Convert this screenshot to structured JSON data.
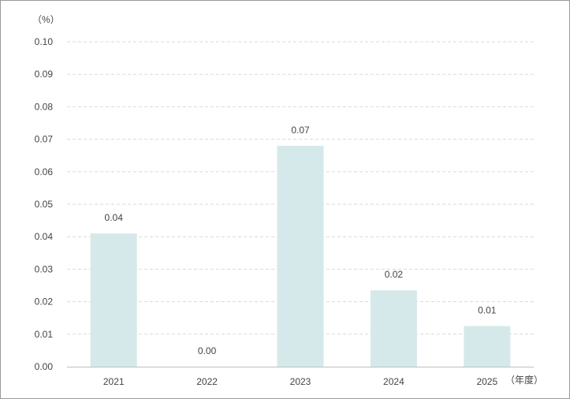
{
  "chart_data": {
    "type": "bar",
    "y_unit_label": "（%）",
    "x_unit_label": "（年度）",
    "categories": [
      "2021",
      "2022",
      "2023",
      "2024",
      "2025"
    ],
    "values": [
      0.041,
      0.0,
      0.068,
      0.0235,
      0.0125
    ],
    "data_labels": [
      "0.04",
      "0.00",
      "0.07",
      "0.02",
      "0.01"
    ],
    "ylim": [
      0,
      0.1
    ],
    "yticks": [
      "0.00",
      "0.01",
      "0.02",
      "0.03",
      "0.04",
      "0.05",
      "0.06",
      "0.07",
      "0.08",
      "0.09",
      "0.10"
    ],
    "grid": true,
    "bar_color": "#d6e9ea",
    "grid_color": "#d9d9d9",
    "axis_color": "#bfbfbf"
  }
}
